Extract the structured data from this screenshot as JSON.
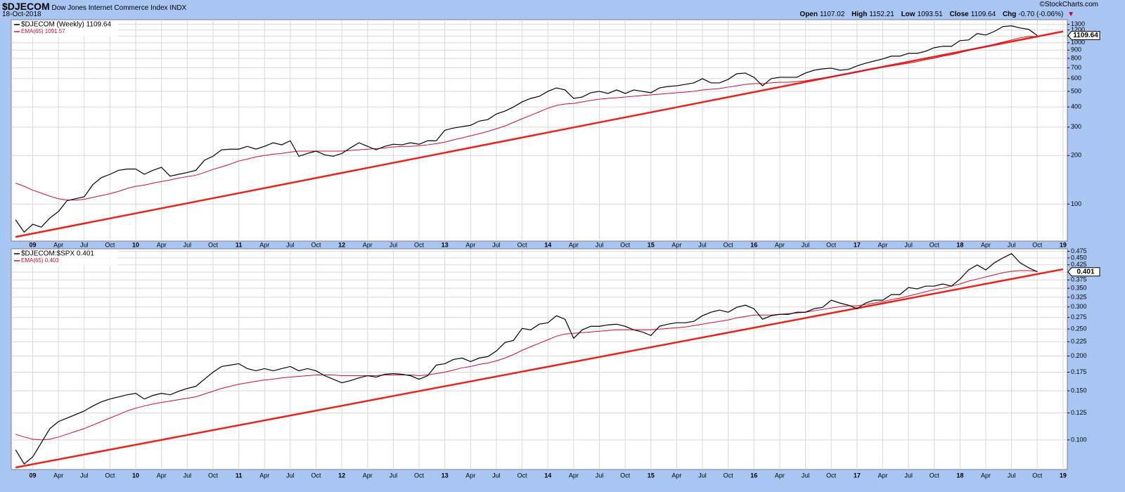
{
  "header": {
    "symbol": "$DJECOM",
    "name": "Dow Jones Internet Commerce Index",
    "exchange": "INDX",
    "date": "18-Oct-2018",
    "credit": "©StockCharts.com",
    "quote": [
      {
        "label": "Open",
        "value": 1107.02
      },
      {
        "label": "High",
        "value": 1152.21
      },
      {
        "label": "Low",
        "value": 1093.51
      },
      {
        "label": "Close",
        "value": 1109.64
      },
      {
        "label": "Chg",
        "value": "-0.70 (-0.06%)"
      }
    ]
  },
  "chart_data": [
    {
      "type": "line",
      "log_scale": true,
      "grid": true,
      "last_label": "1109.64",
      "categories": [
        null,
        null,
        "09",
        null,
        null,
        "Apr",
        null,
        null,
        "Jul",
        null,
        null,
        "Oct",
        null,
        null,
        "10",
        null,
        null,
        "Apr",
        null,
        null,
        "Jul",
        null,
        null,
        "Oct",
        null,
        null,
        "11",
        null,
        null,
        "Apr",
        null,
        null,
        "Jul",
        null,
        null,
        "Oct",
        null,
        null,
        "12",
        null,
        null,
        "Apr",
        null,
        null,
        "Jul",
        null,
        null,
        "Oct",
        null,
        null,
        "13",
        null,
        null,
        "Apr",
        null,
        null,
        "Jul",
        null,
        null,
        "Oct",
        null,
        null,
        "14",
        null,
        null,
        "Apr",
        null,
        null,
        "Jul",
        null,
        null,
        "Oct",
        null,
        null,
        "15",
        null,
        null,
        "Apr",
        null,
        null,
        "Jul",
        null,
        null,
        "Oct",
        null,
        null,
        "16",
        null,
        null,
        "Apr",
        null,
        null,
        "Jul",
        null,
        null,
        "Oct",
        null,
        null,
        "17",
        null,
        null,
        "Apr",
        null,
        null,
        "Jul",
        null,
        null,
        "Oct",
        null,
        null,
        "18",
        null,
        null,
        "Apr",
        null,
        null,
        "Jul",
        null,
        null,
        "Oct",
        null,
        null,
        "19"
      ],
      "series": [
        {
          "name": "$DJECOM (Weekly) 1109.64",
          "color": "#000000",
          "values": [
            80,
            67,
            75,
            72,
            82,
            90,
            105,
            108,
            111,
            132,
            146,
            153,
            162,
            165,
            165,
            153,
            162,
            169,
            149,
            153,
            157,
            162,
            187,
            198,
            217,
            219,
            219,
            228,
            219,
            228,
            240,
            233,
            247,
            198,
            206,
            213,
            202,
            198,
            206,
            223,
            240,
            228,
            217,
            228,
            235,
            233,
            240,
            235,
            247,
            247,
            287,
            296,
            302,
            308,
            327,
            334,
            362,
            377,
            400,
            430,
            452,
            466,
            500,
            525,
            510,
            452,
            461,
            490,
            500,
            485,
            510,
            485,
            510,
            500,
            490,
            525,
            536,
            541,
            552,
            564,
            599,
            564,
            564,
            593,
            643,
            649,
            611,
            541,
            599,
            611,
            611,
            611,
            649,
            676,
            689,
            696,
            676,
            683,
            718,
            747,
            770,
            794,
            826,
            826,
            860,
            860,
            886,
            932,
            951,
            951,
            1031,
            1041,
            1140,
            1117,
            1175,
            1260,
            1273,
            1235,
            1211,
            1109.64,
            null,
            null,
            null
          ]
        },
        {
          "name": "EMA(65) 1091.57",
          "color": "#c8102e",
          "values": [
            135,
            129,
            122,
            117,
            112,
            108,
            106,
            106,
            107,
            110,
            113,
            116,
            120,
            125,
            129,
            131,
            135,
            138,
            141,
            145,
            148,
            151,
            157,
            164,
            170,
            177,
            185,
            190,
            196,
            200,
            204,
            206,
            210,
            213,
            213,
            213,
            213,
            213,
            213,
            215,
            217,
            219,
            221,
            223,
            226,
            228,
            228,
            230,
            233,
            237,
            242,
            250,
            257,
            265,
            273,
            282,
            293,
            305,
            321,
            338,
            355,
            373,
            393,
            409,
            417,
            421,
            430,
            439,
            447,
            452,
            456,
            461,
            466,
            471,
            475,
            480,
            485,
            490,
            495,
            500,
            510,
            515,
            520,
            531,
            541,
            552,
            558,
            558,
            564,
            569,
            569,
            575,
            581,
            593,
            605,
            617,
            630,
            643,
            656,
            676,
            689,
            704,
            718,
            732,
            747,
            763,
            786,
            802,
            826,
            843,
            869,
            895,
            923,
            951,
            980,
            1010,
            1041,
            1073,
            1095,
            1091.57,
            null,
            null,
            null
          ]
        }
      ],
      "trendline": {
        "color": "#e8231c",
        "start": 62.6,
        "end": 1175
      },
      "ylim": [
        59,
        1390
      ],
      "yticks": [
        100,
        200,
        300,
        400,
        500,
        600,
        700,
        800,
        900,
        1000,
        1100,
        1200,
        1300
      ]
    },
    {
      "type": "line",
      "log_scale": true,
      "grid": true,
      "last_label": "0.401",
      "categories": [
        null,
        null,
        "09",
        null,
        null,
        "Apr",
        null,
        null,
        "Jul",
        null,
        null,
        "Oct",
        null,
        null,
        "10",
        null,
        null,
        "Apr",
        null,
        null,
        "Jul",
        null,
        null,
        "Oct",
        null,
        null,
        "11",
        null,
        null,
        "Apr",
        null,
        null,
        "Jul",
        null,
        null,
        "Oct",
        null,
        null,
        "12",
        null,
        null,
        "Apr",
        null,
        null,
        "Jul",
        null,
        null,
        "Oct",
        null,
        null,
        "13",
        null,
        null,
        "Apr",
        null,
        null,
        "Jul",
        null,
        null,
        "Oct",
        null,
        null,
        "14",
        null,
        null,
        "Apr",
        null,
        null,
        "Jul",
        null,
        null,
        "Oct",
        null,
        null,
        "15",
        null,
        null,
        "Apr",
        null,
        null,
        "Jul",
        null,
        null,
        "Oct",
        null,
        null,
        "16",
        null,
        null,
        "Apr",
        null,
        null,
        "Jul",
        null,
        null,
        "Oct",
        null,
        null,
        "17",
        null,
        null,
        "Apr",
        null,
        null,
        "Jul",
        null,
        null,
        "Oct",
        null,
        null,
        "18",
        null,
        null,
        "Apr",
        null,
        null,
        "Jul",
        null,
        null,
        "Oct",
        null,
        null,
        "19"
      ],
      "series": [
        {
          "name": "$DJECOM:$SPX 0.401",
          "color": "#000000",
          "values": [
            0.0922,
            0.082,
            0.0869,
            0.0977,
            0.1098,
            0.1164,
            0.1198,
            0.1233,
            0.127,
            0.1323,
            0.137,
            0.1402,
            0.1427,
            0.1452,
            0.1469,
            0.1402,
            0.1444,
            0.1469,
            0.1452,
            0.1495,
            0.153,
            0.1557,
            0.1651,
            0.175,
            0.1834,
            0.1855,
            0.1877,
            0.1802,
            0.177,
            0.1802,
            0.177,
            0.1802,
            0.1834,
            0.177,
            0.1802,
            0.177,
            0.17,
            0.1651,
            0.1603,
            0.1632,
            0.167,
            0.17,
            0.168,
            0.172,
            0.173,
            0.172,
            0.17,
            0.1651,
            0.17,
            0.1855,
            0.1877,
            0.1944,
            0.1967,
            0.191,
            0.1967,
            0.199,
            0.2084,
            0.2236,
            0.2275,
            0.2512,
            0.2483,
            0.2602,
            0.2633,
            0.279,
            0.271,
            0.2315,
            0.2483,
            0.2557,
            0.2557,
            0.2587,
            0.2602,
            0.2557,
            0.2483,
            0.244,
            0.237,
            0.2557,
            0.2602,
            0.2633,
            0.2633,
            0.2663,
            0.279,
            0.2872,
            0.2923,
            0.2872,
            0.2992,
            0.3045,
            0.2957,
            0.271,
            0.279,
            0.2822,
            0.2822,
            0.2872,
            0.2872,
            0.2957,
            0.2992,
            0.3172,
            0.3099,
            0.3045,
            0.2957,
            0.3099,
            0.3172,
            0.3172,
            0.3323,
            0.3323,
            0.3523,
            0.3482,
            0.3564,
            0.3564,
            0.3627,
            0.3564,
            0.3777,
            0.4074,
            0.4245,
            0.4074,
            0.432,
            0.45,
            0.466,
            0.432,
            0.4147,
            0.401,
            null,
            null,
            null
          ]
        },
        {
          "name": "EMA(65) 0.403",
          "color": "#c8102e",
          "values": [
            0.1048,
            0.1024,
            0.1006,
            0.1,
            0.1006,
            0.1024,
            0.1048,
            0.1073,
            0.1098,
            0.113,
            0.1164,
            0.1198,
            0.1233,
            0.127,
            0.13,
            0.1323,
            0.1346,
            0.1362,
            0.1378,
            0.1394,
            0.1411,
            0.1427,
            0.1461,
            0.1495,
            0.153,
            0.1557,
            0.1585,
            0.1603,
            0.1623,
            0.1641,
            0.1651,
            0.167,
            0.168,
            0.169,
            0.17,
            0.171,
            0.171,
            0.171,
            0.17,
            0.17,
            0.17,
            0.17,
            0.17,
            0.171,
            0.171,
            0.171,
            0.171,
            0.17,
            0.171,
            0.173,
            0.175,
            0.1781,
            0.1813,
            0.1834,
            0.1866,
            0.1888,
            0.1921,
            0.1967,
            0.2025,
            0.2097,
            0.2159,
            0.2223,
            0.2288,
            0.2356,
            0.2398,
            0.2412,
            0.2426,
            0.244,
            0.2455,
            0.2469,
            0.2483,
            0.2483,
            0.2483,
            0.2483,
            0.2483,
            0.2498,
            0.2512,
            0.2527,
            0.2542,
            0.2572,
            0.2602,
            0.2633,
            0.2663,
            0.2694,
            0.2742,
            0.2773,
            0.2806,
            0.2806,
            0.2806,
            0.2822,
            0.2839,
            0.2855,
            0.2872,
            0.2906,
            0.294,
            0.2974,
            0.3009,
            0.3027,
            0.3027,
            0.3062,
            0.3099,
            0.3134,
            0.3189,
            0.3227,
            0.3284,
            0.3342,
            0.3401,
            0.3461,
            0.3502,
            0.3564,
            0.3627,
            0.3712,
            0.3777,
            0.3844,
            0.3912,
            0.3981,
            0.4028,
            0.4051,
            0.4051,
            0.403,
            null,
            null,
            null
          ]
        }
      ],
      "trendline": {
        "color": "#e8231c",
        "start": 0.0796,
        "end": 0.4097
      },
      "ylim": [
        0.0783,
        0.485
      ],
      "yticks": [
        {
          "value": 0.1,
          "label": "0.100"
        },
        {
          "value": 0.125,
          "label": "0.125"
        },
        {
          "value": 0.15,
          "label": "0.150"
        },
        {
          "value": 0.175,
          "label": "0.175"
        },
        {
          "value": 0.2,
          "label": "0.200"
        },
        {
          "value": 0.225,
          "label": "0.225"
        },
        {
          "value": 0.25,
          "label": "0.250"
        },
        {
          "value": 0.275,
          "label": "0.275"
        },
        {
          "value": 0.3,
          "label": "0.300"
        },
        {
          "value": 0.325,
          "label": "0.325"
        },
        {
          "value": 0.35,
          "label": "0.350"
        },
        {
          "value": 0.375,
          "label": "0.375"
        },
        {
          "value": 0.4,
          "label": "0.400"
        },
        {
          "value": 0.425,
          "label": "0.425"
        },
        {
          "value": 0.45,
          "label": "0.450"
        },
        {
          "value": 0.475,
          "label": "0.475"
        }
      ]
    }
  ]
}
